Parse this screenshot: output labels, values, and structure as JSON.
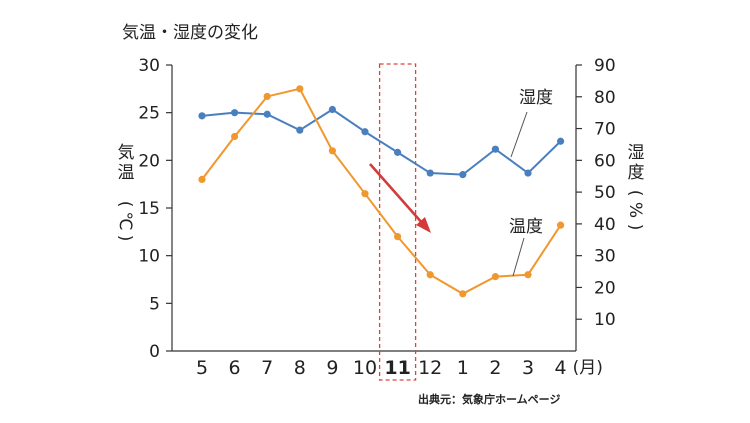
{
  "chart_data": {
    "type": "line",
    "title": "気温・湿度の変化",
    "categories": [
      "5",
      "6",
      "7",
      "8",
      "9",
      "10",
      "11",
      "12",
      "1",
      "2",
      "3",
      "4"
    ],
    "month_unit": "(月)",
    "highlight_category": "11",
    "y_left": {
      "label_chars": [
        "気",
        "温"
      ],
      "unit_chars": [
        "(",
        "℃",
        ")"
      ],
      "ylim": [
        0,
        30
      ],
      "ticks": [
        "0",
        "5",
        "10",
        "15",
        "20",
        "25",
        "30"
      ]
    },
    "y_right": {
      "label_chars": [
        "湿",
        "度"
      ],
      "unit_chars": [
        "(",
        "%",
        ")"
      ],
      "ylim": [
        0,
        90
      ],
      "ticks": [
        "10",
        "20",
        "30",
        "40",
        "50",
        "60",
        "70",
        "80",
        "90"
      ]
    },
    "series": [
      {
        "name": "湿度",
        "axis": "right",
        "color": "#4a7fbf",
        "values": [
          74,
          75,
          74.5,
          69.5,
          76,
          69,
          62.5,
          56,
          55.5,
          63.5,
          56,
          66
        ]
      },
      {
        "name": "温度",
        "axis": "left",
        "color": "#f0972d",
        "values": [
          18,
          22.5,
          26.7,
          27.5,
          21,
          16.5,
          12,
          8,
          6,
          7.8,
          8,
          13.2
        ]
      }
    ],
    "source": "出典元：気象庁ホームページ"
  },
  "colors": {
    "highlight": "#d9453e",
    "arrow": "#d33b3b",
    "axis": "#333333"
  }
}
